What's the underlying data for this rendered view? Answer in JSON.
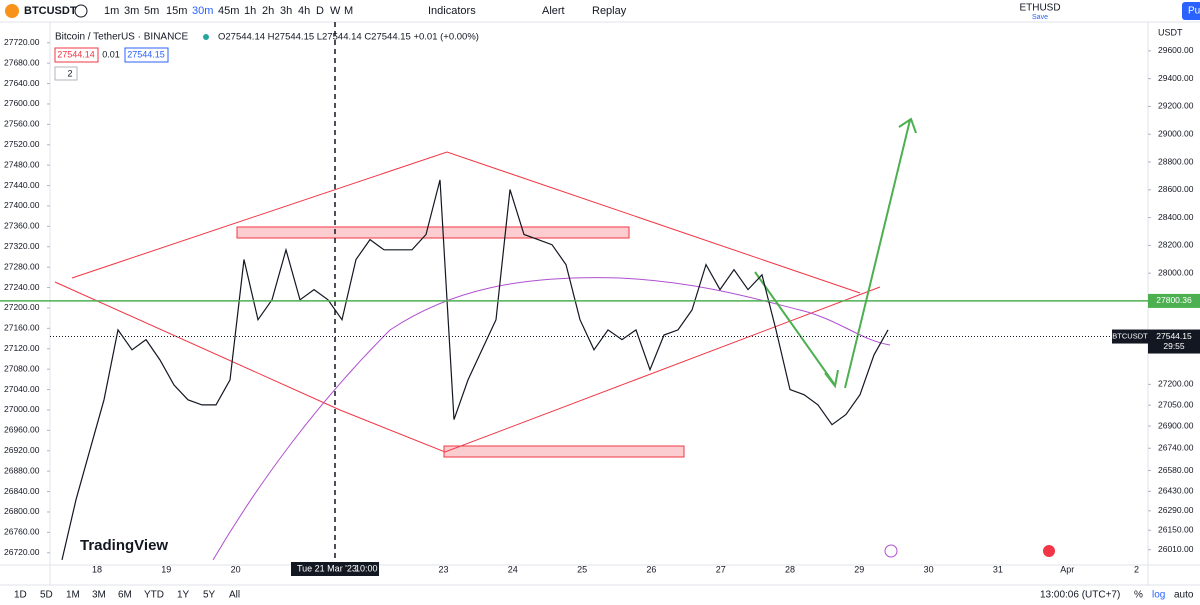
{
  "toolbar": {
    "symbol": "BTCUSDT",
    "intervals": [
      "1m",
      "3m",
      "5m",
      "15m",
      "30m",
      "45m",
      "1h",
      "2h",
      "3h",
      "4h",
      "D",
      "W",
      "M"
    ],
    "indicators": "Indicators",
    "alert": "Alert",
    "replay": "Replay",
    "layout_symbol": "ETHUSD",
    "save": "Save",
    "publish": "Pu"
  },
  "legend": {
    "title": "Bitcoin / TetherUS · BINANCE",
    "ohlc": "O27544.14 H27544.15 L27544.14 C27544.15 +0.01 (+0.00%)",
    "sell": "27544.14",
    "spread": "0.01",
    "buy": "27544.15",
    "count": "2"
  },
  "chart_data": {
    "type": "line",
    "color": "#131722",
    "x_labels": [
      "18",
      "19",
      "20",
      null,
      null,
      "23",
      "24",
      "25",
      "26",
      "27",
      "28",
      "29",
      "30",
      "31",
      "Apr",
      "2"
    ],
    "crosshair_label": "Tue 21 Mar '23",
    "crosshair_time": "10:00",
    "values": [
      26706,
      26824,
      26922,
      27020,
      27157,
      27118,
      27138,
      27098,
      27049,
      27020,
      27010,
      27010,
      27059,
      27295,
      27177,
      27216,
      27314,
      27216,
      27236,
      27216,
      27177,
      27295,
      27334,
      27314,
      27314,
      27314,
      27344,
      27451,
      26981,
      27059,
      27118,
      27177,
      27432,
      27344,
      27334,
      27324,
      27285,
      27177,
      27118,
      27157,
      27138,
      27157,
      27079,
      27147,
      27157,
      27196,
      27285,
      27236,
      27275,
      27236,
      27265,
      27157,
      27040,
      27030,
      27010,
      26971,
      26991,
      27030,
      27108,
      27157
    ],
    "ylim": [
      26696,
      27745
    ],
    "yticks": [
      {
        "value": 27720,
        "label": "27720.00"
      },
      {
        "value": 27680,
        "label": "27680.00"
      },
      {
        "value": 27640,
        "label": "27640.00"
      },
      {
        "value": 27600,
        "label": "27600.00"
      },
      {
        "value": 27560,
        "label": "27560.00"
      },
      {
        "value": 27520,
        "label": "27520.00"
      },
      {
        "value": 27480,
        "label": "27480.00"
      },
      {
        "value": 27440,
        "label": "27440.00"
      },
      {
        "value": 27400,
        "label": "27400.00"
      },
      {
        "value": 27360,
        "label": "27360.00"
      },
      {
        "value": 27320,
        "label": "27320.00"
      },
      {
        "value": 27280,
        "label": "27280.00"
      },
      {
        "value": 27240,
        "label": "27240.00"
      },
      {
        "value": 27200,
        "label": "27200.00"
      },
      {
        "value": 27160,
        "label": "27160.00"
      },
      {
        "value": 27120,
        "label": "27120.00"
      },
      {
        "value": 27080,
        "label": "27080.00"
      },
      {
        "value": 27040,
        "label": "27040.00"
      },
      {
        "value": 27000,
        "label": "27000.00"
      },
      {
        "value": 26960,
        "label": "26960.00"
      },
      {
        "value": 26920,
        "label": "26920.00"
      },
      {
        "value": 26880,
        "label": "26880.00"
      },
      {
        "value": 26840,
        "label": "26840.00"
      },
      {
        "value": 26800,
        "label": "26800.00"
      },
      {
        "value": 26760,
        "label": "26760.00"
      },
      {
        "value": 26720,
        "label": "26720.00"
      }
    ],
    "y2_unit": "USDT",
    "y2lim": [
      25900,
      29750
    ],
    "y2ticks": [
      {
        "value": 29600,
        "label": "29600.00"
      },
      {
        "value": 29400,
        "label": "29400.00"
      },
      {
        "value": 29200,
        "label": "29200.00"
      },
      {
        "value": 29000,
        "label": "29000.00"
      },
      {
        "value": 28800,
        "label": "28800.00"
      },
      {
        "value": 28600,
        "label": "28600.00"
      },
      {
        "value": 28400,
        "label": "28400.00"
      },
      {
        "value": 28200,
        "label": "28200.00"
      },
      {
        "value": 28000,
        "label": "28000.00"
      },
      {
        "value": 27200,
        "label": "27200.00"
      },
      {
        "value": 27050,
        "label": "27050.00"
      },
      {
        "value": 26900,
        "label": "26900.00"
      },
      {
        "value": 26740,
        "label": "26740.00"
      },
      {
        "value": 26580,
        "label": "26580.00"
      },
      {
        "value": 26430,
        "label": "26430.00"
      },
      {
        "value": 26290,
        "label": "26290.00"
      },
      {
        "value": 26150,
        "label": "26150.00"
      },
      {
        "value": 26010,
        "label": "26010.00"
      }
    ],
    "symbol_label": "BTCUSDT",
    "last_price": 27544.15,
    "countdown": "29:55",
    "level": 27800.36
  },
  "watermark": "TradingView",
  "bottom": {
    "ranges": [
      "1D",
      "5D",
      "1M",
      "3M",
      "6M",
      "YTD",
      "1Y",
      "5Y",
      "All"
    ],
    "time": "13:00:06 (UTC+7)",
    "percent": "%",
    "log": "log",
    "auto": "auto"
  }
}
